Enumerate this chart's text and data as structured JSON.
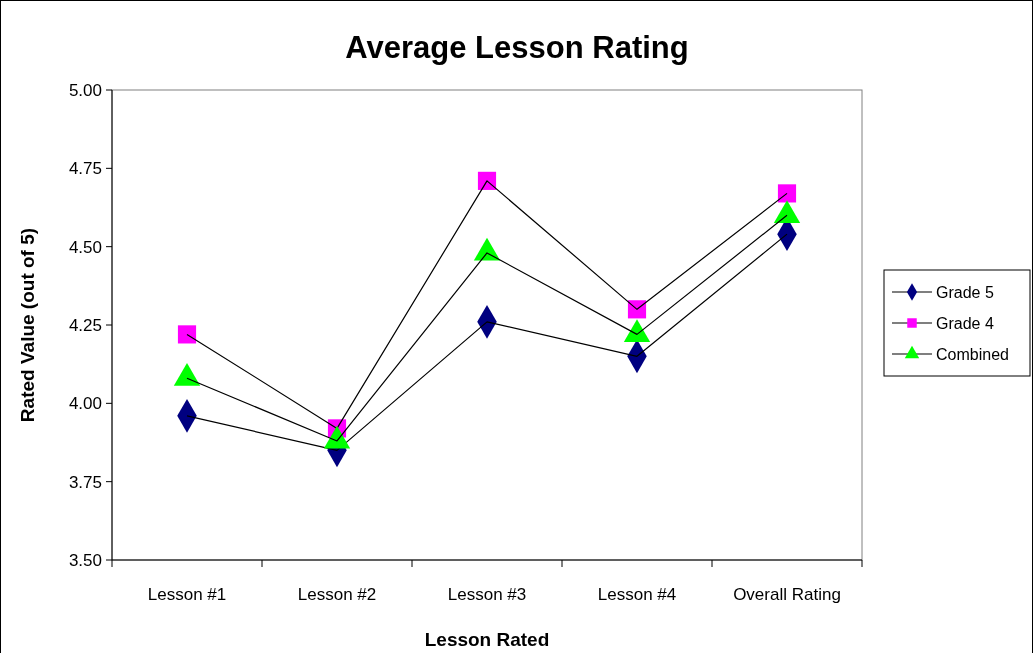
{
  "chart_data": {
    "type": "line",
    "title": "Average Lesson Rating",
    "xlabel": "Lesson Rated",
    "ylabel": "Rated Value (out of 5)",
    "categories": [
      "Lesson #1",
      "Lesson #2",
      "Lesson #3",
      "Lesson #4",
      "Overall Rating"
    ],
    "series": [
      {
        "name": "Grade 5",
        "color": "#000080",
        "marker": "diamond",
        "values": [
          3.96,
          3.85,
          4.26,
          4.15,
          4.54
        ]
      },
      {
        "name": "Grade 4",
        "color": "#ff00ff",
        "marker": "square",
        "values": [
          4.22,
          3.92,
          4.71,
          4.3,
          4.67
        ]
      },
      {
        "name": "Combined",
        "color": "#00ff00",
        "marker": "triangle",
        "values": [
          4.08,
          3.88,
          4.48,
          4.22,
          4.6
        ]
      }
    ],
    "ylim": [
      3.5,
      5
    ],
    "yticks": [
      {
        "value": 3.5,
        "label": "3.50"
      },
      {
        "value": 3.75,
        "label": "3.75"
      },
      {
        "value": 4,
        "label": "4.00"
      },
      {
        "value": 4.25,
        "label": "4.25"
      },
      {
        "value": 4.5,
        "label": "4.50"
      },
      {
        "value": 4.75,
        "label": "4.75"
      },
      {
        "value": 5,
        "label": "5.00"
      }
    ],
    "grid": false,
    "legend": "right",
    "line_style": "solid"
  }
}
